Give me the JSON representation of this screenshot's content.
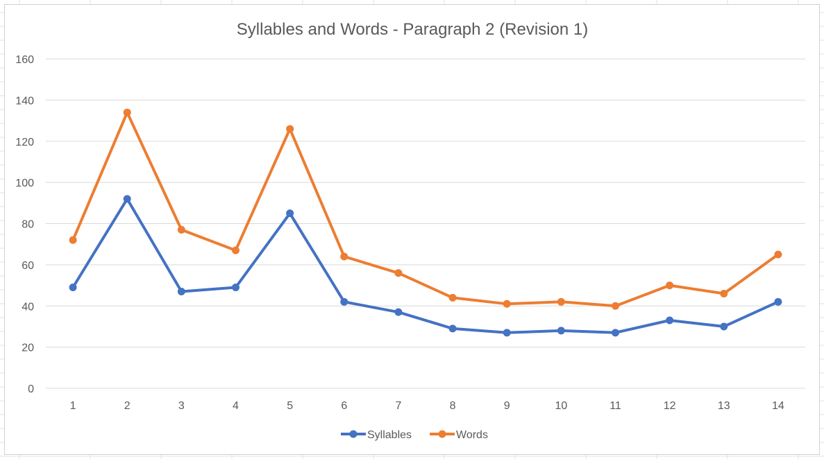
{
  "chart_data": {
    "type": "line",
    "title": "Syllables and Words - Paragraph 2 (Revision 1)",
    "xlabel": "",
    "ylabel": "",
    "categories": [
      "1",
      "2",
      "3",
      "4",
      "5",
      "6",
      "7",
      "8",
      "9",
      "10",
      "11",
      "12",
      "13",
      "14"
    ],
    "series": [
      {
        "name": "Syllables",
        "color": "#4472c4",
        "values": [
          49,
          92,
          47,
          49,
          85,
          42,
          37,
          29,
          27,
          28,
          27,
          33,
          30,
          42
        ]
      },
      {
        "name": "Words",
        "color": "#ed7d31",
        "values": [
          72,
          134,
          77,
          67,
          126,
          64,
          56,
          44,
          41,
          42,
          40,
          50,
          46,
          65
        ]
      }
    ],
    "ylim": [
      0,
      160
    ],
    "yticks": [
      "0",
      "20",
      "40",
      "60",
      "80",
      "100",
      "120",
      "140",
      "160"
    ],
    "grid": true,
    "legend": "bottom",
    "colors": {
      "gridline": "#d9d9d9",
      "text": "#595959"
    }
  }
}
